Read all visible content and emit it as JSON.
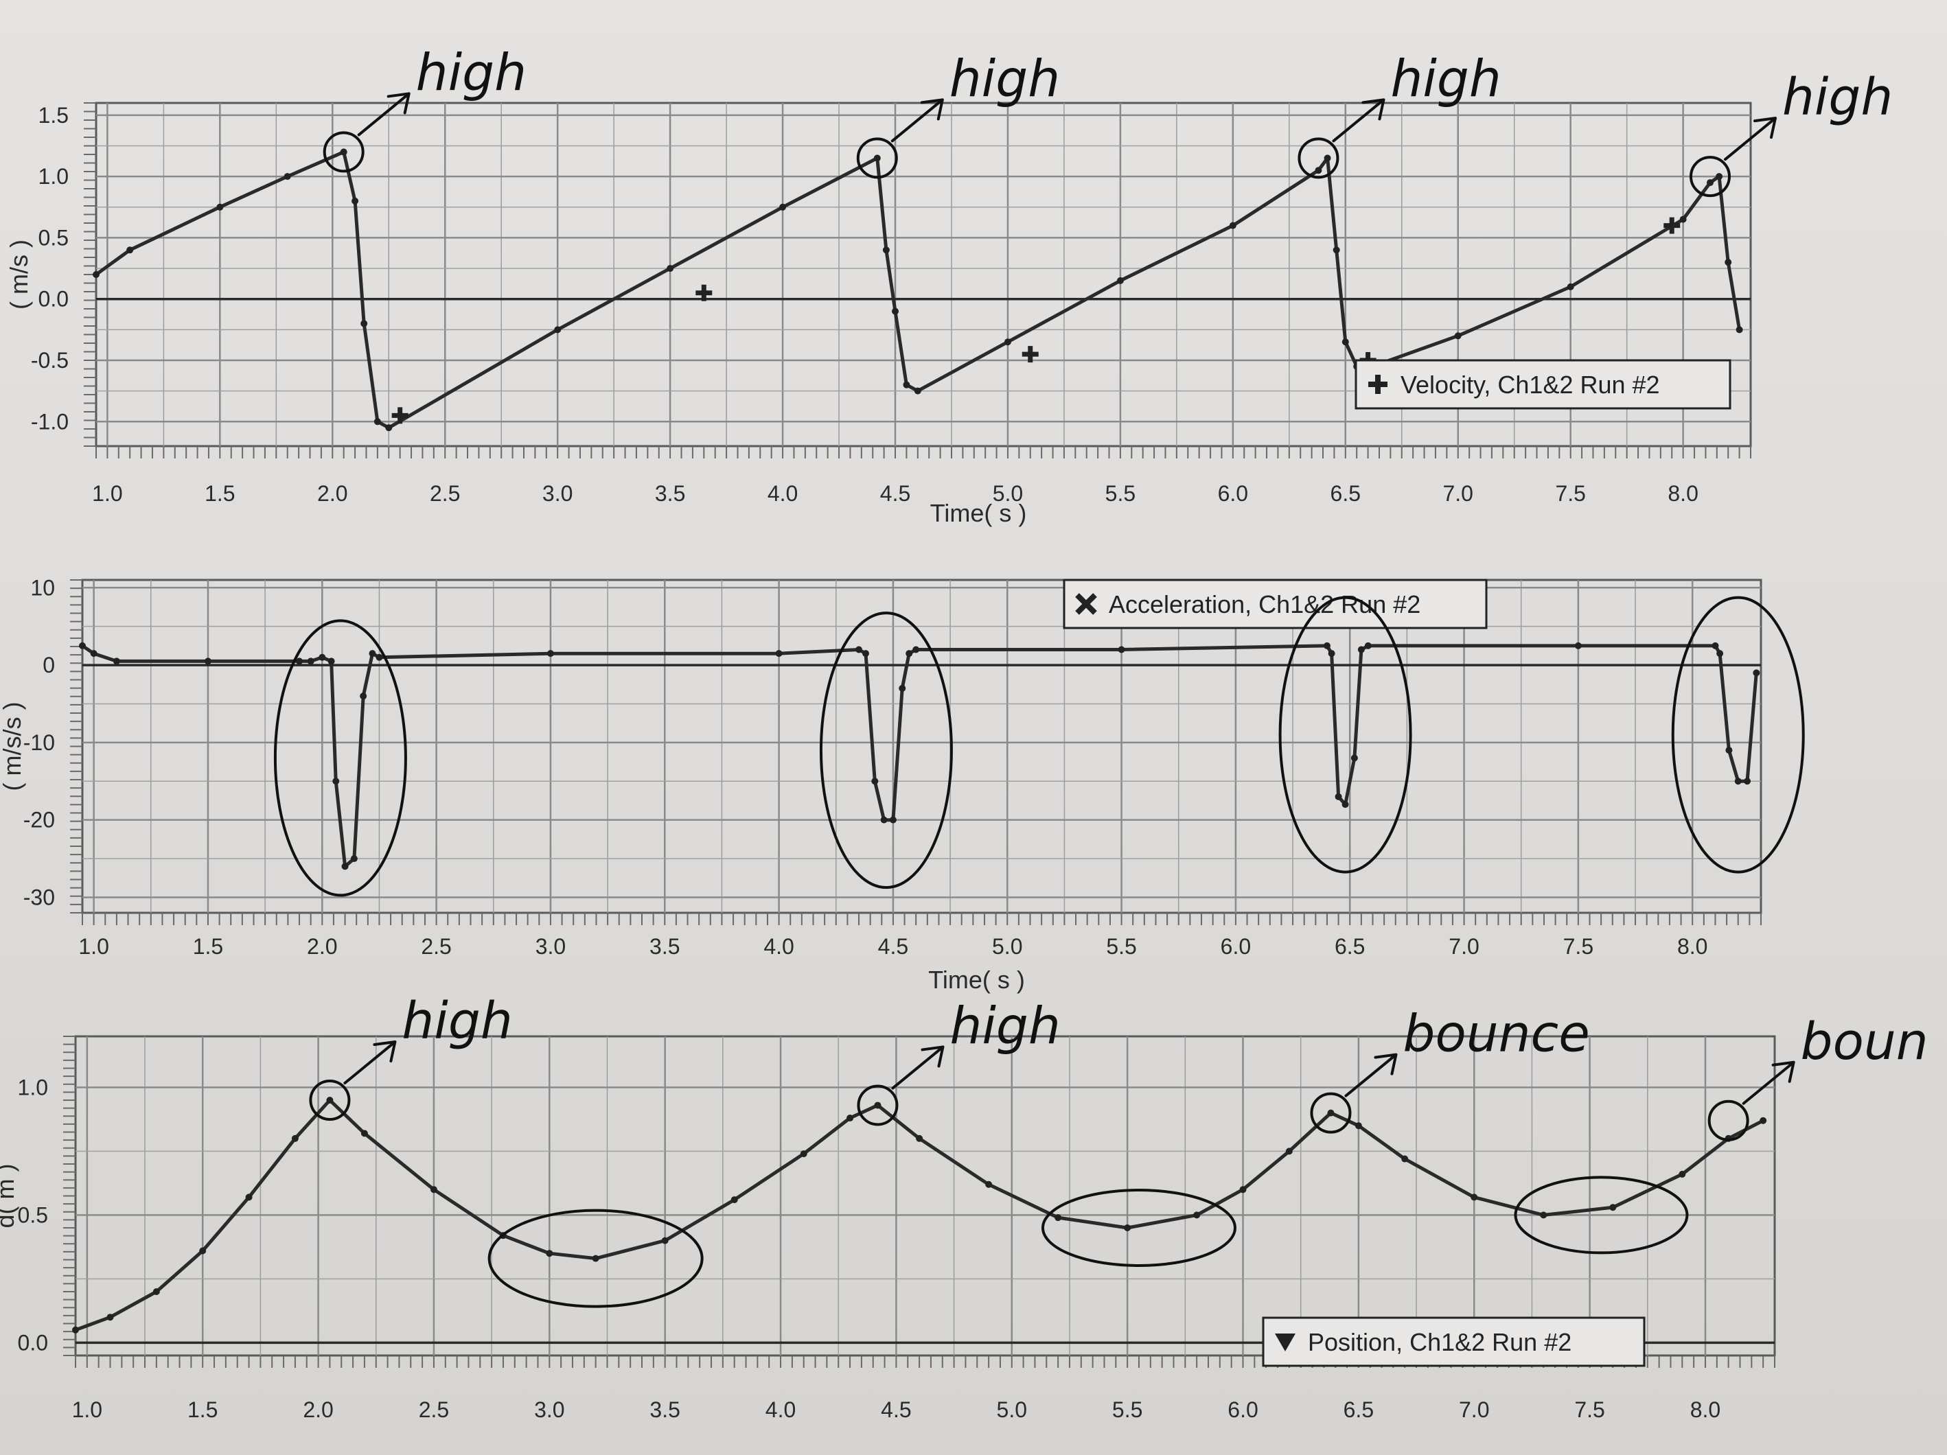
{
  "chart_data": [
    {
      "type": "line",
      "title": "",
      "xlabel": "Time( s )",
      "ylabel": "( m/s )",
      "xlim": [
        0.95,
        8.3
      ],
      "ylim": [
        -1.2,
        1.6
      ],
      "xticks": [
        "1.0",
        "1.5",
        "2.0",
        "2.5",
        "3.0",
        "3.5",
        "4.0",
        "4.5",
        "5.0",
        "5.5",
        "6.0",
        "6.5",
        "7.0",
        "7.5",
        "8.0"
      ],
      "yticks": [
        "1.5",
        "1.0",
        "0.5",
        "0.0",
        "-0.5",
        "-1.0"
      ],
      "grid": true,
      "legend": "bottom-right",
      "series": [
        {
          "name": "Velocity, Ch1&2 Run #2",
          "marker": "plus",
          "x": [
            0.95,
            1.1,
            1.5,
            1.8,
            2.05,
            2.1,
            2.14,
            2.2,
            2.25,
            3.0,
            3.5,
            4.0,
            4.42,
            4.46,
            4.5,
            4.55,
            4.6,
            5.0,
            5.5,
            6.0,
            6.38,
            6.42,
            6.46,
            6.5,
            6.55,
            6.62,
            7.0,
            7.5,
            8.0,
            8.12,
            8.16,
            8.2,
            8.25
          ],
          "y": [
            0.2,
            0.4,
            0.75,
            1.0,
            1.2,
            0.8,
            -0.2,
            -1.0,
            -1.05,
            -0.25,
            0.25,
            0.75,
            1.15,
            0.4,
            -0.1,
            -0.7,
            -0.75,
            -0.35,
            0.15,
            0.6,
            1.05,
            1.15,
            0.4,
            -0.35,
            -0.55,
            -0.55,
            -0.3,
            0.1,
            0.65,
            0.95,
            1.0,
            0.3,
            -0.25
          ],
          "markers_x": [
            2.3,
            3.65,
            5.1,
            6.6,
            7.95
          ],
          "markers_y": [
            -0.95,
            0.05,
            -0.45,
            -0.5,
            0.6
          ]
        }
      ],
      "annotations": [
        {
          "text": "high",
          "x": 2.05,
          "y": 1.2
        },
        {
          "text": "high",
          "x": 4.42,
          "y": 1.15
        },
        {
          "text": "high",
          "x": 6.38,
          "y": 1.15
        },
        {
          "text": "high",
          "x": 8.12,
          "y": 1.0
        }
      ]
    },
    {
      "type": "line",
      "title": "",
      "xlabel": "Time( s )",
      "ylabel": "( m/s/s )",
      "xlim": [
        0.95,
        8.3
      ],
      "ylim": [
        -32,
        11
      ],
      "xticks": [
        "1.0",
        "1.5",
        "2.0",
        "2.5",
        "3.0",
        "3.5",
        "4.0",
        "4.5",
        "5.0",
        "5.5",
        "6.0",
        "6.5",
        "7.0",
        "7.5",
        "8.0"
      ],
      "yticks": [
        "10",
        "0",
        "-10",
        "-20",
        "-30"
      ],
      "grid": true,
      "legend": "top-right",
      "series": [
        {
          "name": "Acceleration, Ch1&2 Run #2",
          "marker": "cross",
          "x": [
            0.95,
            1.0,
            1.1,
            1.5,
            1.9,
            1.95,
            2.0,
            2.04,
            2.06,
            2.1,
            2.14,
            2.18,
            2.22,
            2.25,
            3.0,
            4.0,
            4.35,
            4.38,
            4.42,
            4.46,
            4.5,
            4.54,
            4.57,
            4.6,
            5.5,
            6.4,
            6.42,
            6.45,
            6.48,
            6.52,
            6.55,
            6.58,
            7.5,
            8.1,
            8.12,
            8.16,
            8.2,
            8.24,
            8.28
          ],
          "y": [
            2.5,
            1.5,
            0.5,
            0.5,
            0.5,
            0.5,
            1.0,
            0.5,
            -15,
            -26,
            -25,
            -4,
            1.5,
            1.0,
            1.5,
            1.5,
            2.0,
            1.5,
            -15,
            -20,
            -20,
            -3,
            1.5,
            2.0,
            2.0,
            2.5,
            1.5,
            -17,
            -18,
            -12,
            2.0,
            2.5,
            2.5,
            2.5,
            1.5,
            -11,
            -15,
            -15,
            -1
          ]
        }
      ],
      "annotations": []
    },
    {
      "type": "line",
      "title": "",
      "xlabel": "",
      "ylabel": "d( m )",
      "xlim": [
        0.95,
        8.3
      ],
      "ylim": [
        -0.05,
        1.2
      ],
      "xticks": [
        "1.0",
        "1.5",
        "2.0",
        "2.5",
        "3.0",
        "3.5",
        "4.0",
        "4.5",
        "5.0",
        "5.5",
        "6.0",
        "6.5",
        "7.0",
        "7.5",
        "8.0"
      ],
      "yticks": [
        "1.0",
        "0.5",
        "0.0"
      ],
      "grid": true,
      "legend": "bottom-right",
      "series": [
        {
          "name": "Position, Ch1&2 Run #2",
          "marker": "triangle-down",
          "x": [
            0.95,
            1.1,
            1.3,
            1.5,
            1.7,
            1.9,
            2.05,
            2.2,
            2.5,
            2.8,
            3.0,
            3.2,
            3.5,
            3.8,
            4.1,
            4.3,
            4.42,
            4.6,
            4.9,
            5.2,
            5.5,
            5.8,
            6.0,
            6.2,
            6.38,
            6.5,
            6.7,
            7.0,
            7.3,
            7.6,
            7.9,
            8.1,
            8.25
          ],
          "y": [
            0.05,
            0.1,
            0.2,
            0.36,
            0.57,
            0.8,
            0.95,
            0.82,
            0.6,
            0.42,
            0.35,
            0.33,
            0.4,
            0.56,
            0.74,
            0.88,
            0.93,
            0.8,
            0.62,
            0.49,
            0.45,
            0.5,
            0.6,
            0.75,
            0.9,
            0.85,
            0.72,
            0.57,
            0.5,
            0.53,
            0.66,
            0.8,
            0.87
          ]
        }
      ],
      "annotations": [
        {
          "text": "high",
          "x": 2.05,
          "y": 0.95
        },
        {
          "text": "high",
          "x": 4.42,
          "y": 0.93
        },
        {
          "text": "bounce",
          "x": 6.38,
          "y": 0.9
        },
        {
          "text": "boun",
          "x": 8.1,
          "y": 0.87
        }
      ]
    }
  ]
}
